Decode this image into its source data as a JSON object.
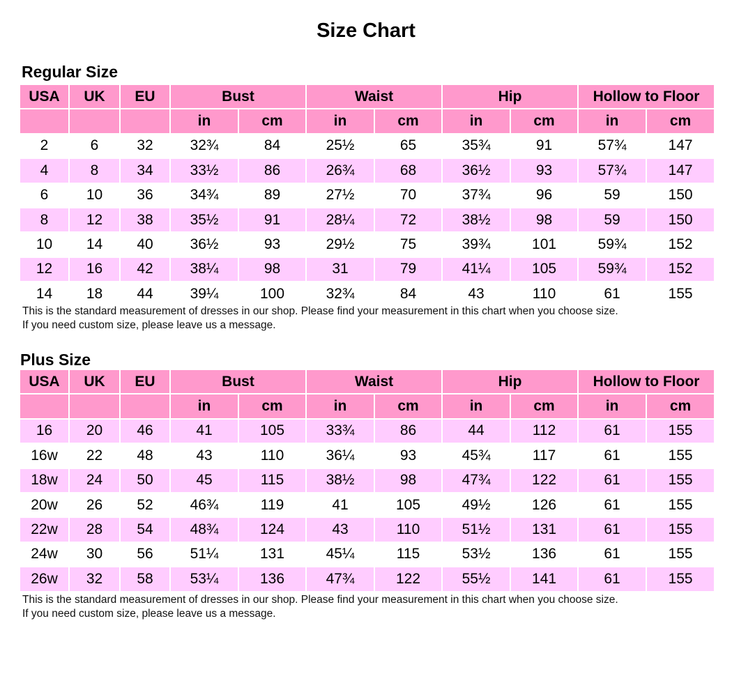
{
  "title": "Size Chart",
  "colors": {
    "header": "#ff99cc",
    "alt_row": "#ffccff"
  },
  "columns": [
    "USA",
    "UK",
    "EU",
    "Bust",
    "Waist",
    "Hip",
    "Hollow to Floor"
  ],
  "units": [
    "in",
    "cm"
  ],
  "regular": {
    "title": "Regular Size",
    "rows": [
      [
        "2",
        "6",
        "32",
        "32¾",
        "84",
        "25½",
        "65",
        "35¾",
        "91",
        "57¾",
        "147"
      ],
      [
        "4",
        "8",
        "34",
        "33½",
        "86",
        "26¾",
        "68",
        "36½",
        "93",
        "57¾",
        "147"
      ],
      [
        "6",
        "10",
        "36",
        "34¾",
        "89",
        "27½",
        "70",
        "37¾",
        "96",
        "59",
        "150"
      ],
      [
        "8",
        "12",
        "38",
        "35½",
        "91",
        "28¼",
        "72",
        "38½",
        "98",
        "59",
        "150"
      ],
      [
        "10",
        "14",
        "40",
        "36½",
        "93",
        "29½",
        "75",
        "39¾",
        "101",
        "59¾",
        "152"
      ],
      [
        "12",
        "16",
        "42",
        "38¼",
        "98",
        "31",
        "79",
        "41¼",
        "105",
        "59¾",
        "152"
      ],
      [
        "14",
        "18",
        "44",
        "39¼",
        "100",
        "32¾",
        "84",
        "43",
        "110",
        "61",
        "155"
      ]
    ],
    "note1": "This is the standard measurement of dresses in our shop. Please find your measurement in this chart when you choose size.",
    "note2": "If you need custom size, please leave us a message."
  },
  "plus": {
    "title": "Plus Size",
    "rows": [
      [
        "16",
        "20",
        "46",
        "41",
        "105",
        "33¾",
        "86",
        "44",
        "112",
        "61",
        "155"
      ],
      [
        "16w",
        "22",
        "48",
        "43",
        "110",
        "36¼",
        "93",
        "45¾",
        "117",
        "61",
        "155"
      ],
      [
        "18w",
        "24",
        "50",
        "45",
        "115",
        "38½",
        "98",
        "47¾",
        "122",
        "61",
        "155"
      ],
      [
        "20w",
        "26",
        "52",
        "46¾",
        "119",
        "41",
        "105",
        "49½",
        "126",
        "61",
        "155"
      ],
      [
        "22w",
        "28",
        "54",
        "48¾",
        "124",
        "43",
        "110",
        "51½",
        "131",
        "61",
        "155"
      ],
      [
        "24w",
        "30",
        "56",
        "51¼",
        "131",
        "45¼",
        "115",
        "53½",
        "136",
        "61",
        "155"
      ],
      [
        "26w",
        "32",
        "58",
        "53¼",
        "136",
        "47¾",
        "122",
        "55½",
        "141",
        "61",
        "155"
      ]
    ],
    "note1": "This is the standard measurement of dresses in our shop. Please find your measurement in this chart when you choose size.",
    "note2": "If you need custom size, please leave us a message."
  }
}
